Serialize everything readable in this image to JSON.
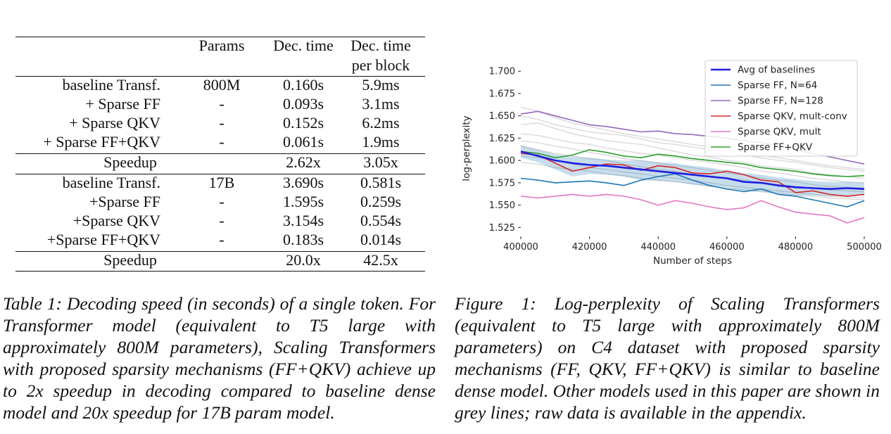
{
  "table": {
    "headers": {
      "params": "Params",
      "dec_time": "Dec. time",
      "dec_block_1": "Dec. time",
      "dec_block_2": "per block"
    },
    "group1": [
      {
        "label": "baseline Transf.",
        "params": "800M",
        "dec": "0.160s",
        "block": "5.9ms"
      },
      {
        "label": "+ Sparse FF",
        "params": "-",
        "dec": "0.093s",
        "block": "3.1ms"
      },
      {
        "label": "+ Sparse QKV",
        "params": "-",
        "dec": "0.152s",
        "block": "6.2ms"
      },
      {
        "label": "+ Sparse FF+QKV",
        "params": "-",
        "dec": "0.061s",
        "block": "1.9ms"
      }
    ],
    "speedup1": {
      "label": "Speedup",
      "dec": "2.62x",
      "block": "3.05x"
    },
    "group2": [
      {
        "label": "baseline Transf.",
        "params": "17B",
        "dec": "3.690s",
        "block": "0.581s"
      },
      {
        "label": "+Sparse FF",
        "params": "-",
        "dec": "1.595s",
        "block": "0.259s"
      },
      {
        "label": "+Sparse QKV",
        "params": "-",
        "dec": "3.154s",
        "block": "0.554s"
      },
      {
        "label": "+Sparse FF+QKV",
        "params": "-",
        "dec": "0.183s",
        "block": "0.014s"
      }
    ],
    "speedup2": {
      "label": "Speedup",
      "dec": "20.0x",
      "block": "42.5x"
    },
    "caption": "Table 1: Decoding speed (in seconds) of a single token. For Transformer model (equivalent to T5 large with approximately 800M parameters), Scaling Transformers with proposed sparsity mechanisms (FF+QKV) achieve up to 2x speedup in decoding compared to baseline dense model and 20x speedup for 17B param model."
  },
  "figure": {
    "caption": "Figure 1: Log-perplexity of Scaling Transformers (equivalent to T5 large with approximately 800M parameters) on C4 dataset with proposed sparsity mechanisms (FF, QKV, FF+QKV) is similar to baseline dense model. Other models used in this paper are shown in grey lines; raw data is available in the appendix."
  },
  "chart_data": {
    "type": "line",
    "title": "",
    "xlabel": "Number of steps",
    "ylabel": "log-perplexity",
    "xlim": [
      400000,
      500000
    ],
    "ylim": [
      1.515,
      1.712
    ],
    "xticks": [
      400000,
      420000,
      440000,
      460000,
      480000,
      500000
    ],
    "xtick_labels": [
      "400000",
      "420000",
      "440000",
      "460000",
      "480000",
      "500000"
    ],
    "yticks": [
      1.525,
      1.55,
      1.575,
      1.6,
      1.625,
      1.65,
      1.675,
      1.7
    ],
    "ytick_labels": [
      "1.525",
      "1.550",
      "1.575",
      "1.600",
      "1.625",
      "1.650",
      "1.675",
      "1.700"
    ],
    "legend_position": "top-right",
    "x": [
      400000,
      405000,
      410000,
      415000,
      420000,
      425000,
      430000,
      435000,
      440000,
      445000,
      450000,
      455000,
      460000,
      465000,
      470000,
      475000,
      480000,
      485000,
      490000,
      495000,
      500000
    ],
    "series": [
      {
        "name": "Avg of baselines",
        "color": "#1f1fe0",
        "width": 2.6,
        "values": [
          1.61,
          1.605,
          1.6,
          1.597,
          1.595,
          1.594,
          1.592,
          1.59,
          1.588,
          1.586,
          1.584,
          1.582,
          1.58,
          1.576,
          1.575,
          1.572,
          1.57,
          1.569,
          1.568,
          1.569,
          1.568
        ]
      },
      {
        "name": "Sparse FF, N=64",
        "color": "#1f77b4",
        "width": 1.6,
        "values": [
          1.58,
          1.578,
          1.575,
          1.576,
          1.577,
          1.575,
          1.572,
          1.578,
          1.582,
          1.585,
          1.578,
          1.572,
          1.568,
          1.565,
          1.568,
          1.562,
          1.56,
          1.556,
          1.552,
          1.548,
          1.555
        ]
      },
      {
        "name": "Sparse FF, N=128",
        "color": "#9467bd",
        "width": 1.6,
        "values": [
          1.652,
          1.655,
          1.65,
          1.645,
          1.64,
          1.638,
          1.635,
          1.632,
          1.633,
          1.63,
          1.629,
          1.627,
          1.625,
          1.622,
          1.62,
          1.617,
          1.612,
          1.608,
          1.604,
          1.6,
          1.596
        ]
      },
      {
        "name": "Sparse QKV, mult-conv",
        "color": "#d62728",
        "width": 1.6,
        "values": [
          1.608,
          1.606,
          1.597,
          1.588,
          1.592,
          1.596,
          1.595,
          1.589,
          1.594,
          1.592,
          1.586,
          1.585,
          1.588,
          1.584,
          1.578,
          1.576,
          1.564,
          1.566,
          1.562,
          1.56,
          1.562
        ]
      },
      {
        "name": "Sparse QKV, mult",
        "color": "#e377c2",
        "width": 1.6,
        "values": [
          1.56,
          1.558,
          1.56,
          1.562,
          1.56,
          1.562,
          1.56,
          1.556,
          1.55,
          1.555,
          1.552,
          1.548,
          1.545,
          1.547,
          1.555,
          1.548,
          1.542,
          1.54,
          1.538,
          1.53,
          1.536
        ]
      },
      {
        "name": "Sparse FF+QKV",
        "color": "#2ca02c",
        "width": 1.6,
        "values": [
          1.61,
          1.608,
          1.603,
          1.606,
          1.612,
          1.609,
          1.605,
          1.603,
          1.607,
          1.605,
          1.602,
          1.6,
          1.598,
          1.596,
          1.592,
          1.59,
          1.588,
          1.585,
          1.583,
          1.582,
          1.583
        ]
      }
    ],
    "band": {
      "name": "baseline range",
      "color": "#1f77b4",
      "lower": [
        1.603,
        1.598,
        1.59,
        1.582,
        1.585,
        1.584,
        1.582,
        1.578,
        1.577,
        1.576,
        1.573,
        1.571,
        1.57,
        1.566,
        1.565,
        1.563,
        1.561,
        1.561,
        1.56,
        1.561,
        1.561
      ],
      "upper": [
        1.617,
        1.612,
        1.607,
        1.604,
        1.603,
        1.601,
        1.6,
        1.6,
        1.598,
        1.597,
        1.594,
        1.592,
        1.589,
        1.586,
        1.584,
        1.581,
        1.579,
        1.577,
        1.576,
        1.576,
        1.575
      ]
    },
    "grey_series": [
      [
        1.65,
        1.646,
        1.64,
        1.636,
        1.632,
        1.63,
        1.628,
        1.624,
        1.62,
        1.618,
        1.615,
        1.612,
        1.61,
        1.606,
        1.603,
        1.6,
        1.598,
        1.595,
        1.592,
        1.59,
        1.588
      ],
      [
        1.64,
        1.642,
        1.636,
        1.63,
        1.626,
        1.622,
        1.62,
        1.618,
        1.614,
        1.61,
        1.606,
        1.604,
        1.6,
        1.598,
        1.594,
        1.592,
        1.59,
        1.586,
        1.584,
        1.582,
        1.58
      ],
      [
        1.63,
        1.628,
        1.624,
        1.62,
        1.618,
        1.614,
        1.611,
        1.608,
        1.606,
        1.603,
        1.6,
        1.598,
        1.595,
        1.592,
        1.588,
        1.586,
        1.583,
        1.58,
        1.578,
        1.576,
        1.575
      ],
      [
        1.622,
        1.62,
        1.616,
        1.613,
        1.609,
        1.606,
        1.602,
        1.6,
        1.597,
        1.594,
        1.592,
        1.589,
        1.586,
        1.584,
        1.58,
        1.578,
        1.576,
        1.573,
        1.571,
        1.57,
        1.569
      ],
      [
        1.616,
        1.612,
        1.608,
        1.605,
        1.602,
        1.6,
        1.596,
        1.593,
        1.59,
        1.588,
        1.585,
        1.582,
        1.58,
        1.578,
        1.575,
        1.573,
        1.571,
        1.569,
        1.567,
        1.566,
        1.565
      ],
      [
        1.605,
        1.603,
        1.6,
        1.596,
        1.592,
        1.59,
        1.587,
        1.585,
        1.582,
        1.58,
        1.578,
        1.575,
        1.572,
        1.57,
        1.568,
        1.566,
        1.564,
        1.562,
        1.56,
        1.559,
        1.558
      ],
      [
        1.66,
        1.655,
        1.648,
        1.642,
        1.638,
        1.634,
        1.63,
        1.627,
        1.624,
        1.621,
        1.618,
        1.615,
        1.612,
        1.609,
        1.606,
        1.603,
        1.6,
        1.597,
        1.594,
        1.592,
        1.59
      ],
      [
        1.598,
        1.596,
        1.592,
        1.59,
        1.588,
        1.585,
        1.583,
        1.58,
        1.578,
        1.576,
        1.574,
        1.571,
        1.569,
        1.567,
        1.565,
        1.563,
        1.561,
        1.56,
        1.558,
        1.557,
        1.556
      ]
    ]
  }
}
